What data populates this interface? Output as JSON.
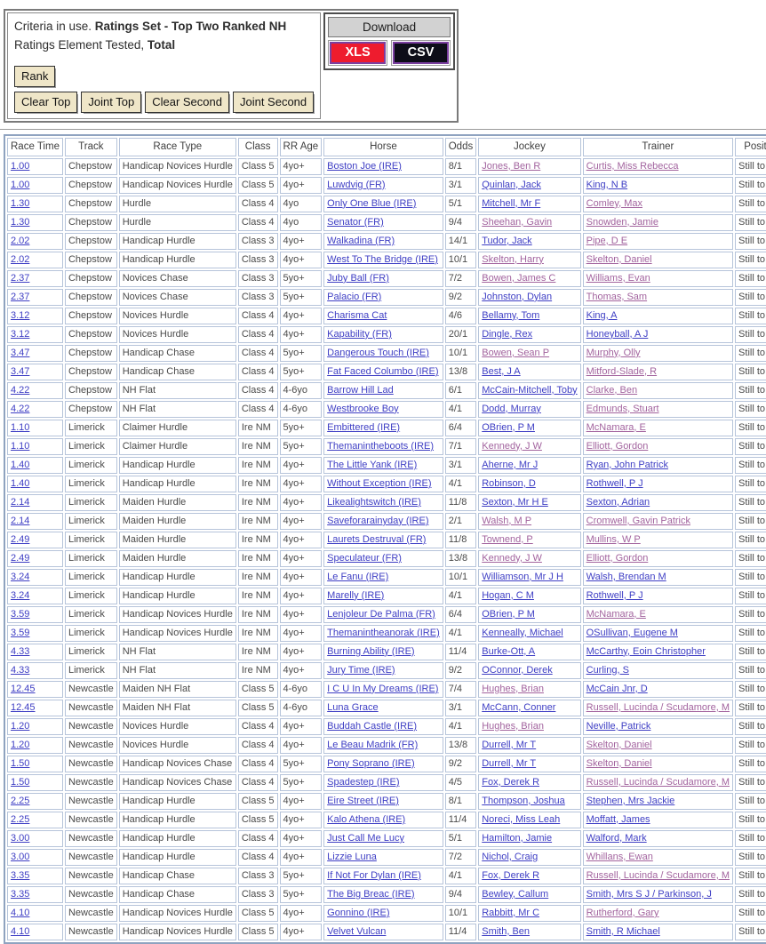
{
  "criteria": {
    "prefix": "Criteria in use. ",
    "ratings_set": "Ratings Set - Top Two Ranked NH",
    "element_prefix": "Ratings Element Tested, ",
    "element_value": "Total",
    "rank_button": "Rank",
    "buttons": [
      "Clear Top",
      "Joint Top",
      "Clear Second",
      "Joint Second"
    ]
  },
  "download": {
    "title": "Download",
    "xls_label": "XLS",
    "csv_label": "CSV",
    "xls_color": "#ee1c2e",
    "csv_color": "#0d0d18",
    "button_border_color": "#7b3fa0"
  },
  "colors": {
    "link_blue": "#3e3ec4",
    "link_visited": "#a2639e",
    "cell_border": "#b6c4da",
    "table_border": "#8fa3c0",
    "text": "#4a4a4a"
  },
  "table": {
    "columns": [
      "Race Time",
      "Track",
      "Race Type",
      "Class",
      "RR Age",
      "Horse",
      "Odds",
      "Jockey",
      "Trainer",
      "Position"
    ],
    "row_fields": [
      "race_time",
      "track",
      "race_type",
      "class",
      "rr_age",
      "horse",
      "odds",
      "jockey",
      "trainer",
      "position",
      "jockey_visited",
      "trainer_visited"
    ],
    "rows": [
      [
        "1.00",
        "Chepstow",
        "Handicap Novices Hurdle",
        "Class 5",
        "4yo+",
        "Boston Joe (IRE)",
        "8/1",
        "Jones, Ben R",
        "Curtis, Miss Rebecca",
        "Still to Run",
        1,
        1
      ],
      [
        "1.00",
        "Chepstow",
        "Handicap Novices Hurdle",
        "Class 5",
        "4yo+",
        "Luwdvig (FR)",
        "3/1",
        "Quinlan, Jack",
        "King, N B",
        "Still to Run",
        0,
        0
      ],
      [
        "1.30",
        "Chepstow",
        "Hurdle",
        "Class 4",
        "4yo",
        "Only One Blue (IRE)",
        "5/1",
        "Mitchell, Mr F",
        "Comley, Max",
        "Still to Run",
        0,
        1
      ],
      [
        "1.30",
        "Chepstow",
        "Hurdle",
        "Class 4",
        "4yo",
        "Senator (FR)",
        "9/4",
        "Sheehan, Gavin",
        "Snowden, Jamie",
        "Still to Run",
        1,
        1
      ],
      [
        "2.02",
        "Chepstow",
        "Handicap Hurdle",
        "Class 3",
        "4yo+",
        "Walkadina (FR)",
        "14/1",
        "Tudor, Jack",
        "Pipe, D E",
        "Still to Run",
        0,
        1
      ],
      [
        "2.02",
        "Chepstow",
        "Handicap Hurdle",
        "Class 3",
        "4yo+",
        "West To The Bridge (IRE)",
        "10/1",
        "Skelton, Harry",
        "Skelton, Daniel",
        "Still to Run",
        1,
        1
      ],
      [
        "2.37",
        "Chepstow",
        "Novices Chase",
        "Class 3",
        "5yo+",
        "Juby Ball (FR)",
        "7/2",
        "Bowen, James C",
        "Williams, Evan",
        "Still to Run",
        1,
        1
      ],
      [
        "2.37",
        "Chepstow",
        "Novices Chase",
        "Class 3",
        "5yo+",
        "Palacio (FR)",
        "9/2",
        "Johnston, Dylan",
        "Thomas, Sam",
        "Still to Run",
        0,
        1
      ],
      [
        "3.12",
        "Chepstow",
        "Novices Hurdle",
        "Class 4",
        "4yo+",
        "Charisma Cat",
        "4/6",
        "Bellamy, Tom",
        "King, A",
        "Still to Run",
        0,
        0
      ],
      [
        "3.12",
        "Chepstow",
        "Novices Hurdle",
        "Class 4",
        "4yo+",
        "Kapability (FR)",
        "20/1",
        "Dingle, Rex",
        "Honeyball, A J",
        "Still to Run",
        0,
        0
      ],
      [
        "3.47",
        "Chepstow",
        "Handicap Chase",
        "Class 4",
        "5yo+",
        "Dangerous Touch (IRE)",
        "10/1",
        "Bowen, Sean P",
        "Murphy, Olly",
        "Still to Run",
        1,
        1
      ],
      [
        "3.47",
        "Chepstow",
        "Handicap Chase",
        "Class 4",
        "5yo+",
        "Fat Faced Columbo (IRE)",
        "13/8",
        "Best, J A",
        "Mitford-Slade, R",
        "Still to Run",
        0,
        1
      ],
      [
        "4.22",
        "Chepstow",
        "NH Flat",
        "Class 4",
        "4-6yo",
        "Barrow Hill Lad",
        "6/1",
        "McCain-Mitchell, Toby",
        "Clarke, Ben",
        "Still to Run",
        0,
        1
      ],
      [
        "4.22",
        "Chepstow",
        "NH Flat",
        "Class 4",
        "4-6yo",
        "Westbrooke Boy",
        "4/1",
        "Dodd, Murray",
        "Edmunds, Stuart",
        "Still to Run",
        0,
        1
      ],
      [
        "1.10",
        "Limerick",
        "Claimer Hurdle",
        "Ire NM",
        "5yo+",
        "Embittered (IRE)",
        "6/4",
        "OBrien, P M",
        "McNamara, E",
        "Still to Run",
        0,
        1
      ],
      [
        "1.10",
        "Limerick",
        "Claimer Hurdle",
        "Ire NM",
        "5yo+",
        "Themanintheboots (IRE)",
        "7/1",
        "Kennedy, J W",
        "Elliott, Gordon",
        "Still to Run",
        1,
        1
      ],
      [
        "1.40",
        "Limerick",
        "Handicap Hurdle",
        "Ire NM",
        "4yo+",
        "The Little Yank (IRE)",
        "3/1",
        "Aherne, Mr J",
        "Ryan, John Patrick",
        "Still to Run",
        0,
        0
      ],
      [
        "1.40",
        "Limerick",
        "Handicap Hurdle",
        "Ire NM",
        "4yo+",
        "Without Exception (IRE)",
        "4/1",
        "Robinson, D",
        "Rothwell, P J",
        "Still to Run",
        0,
        0
      ],
      [
        "2.14",
        "Limerick",
        "Maiden Hurdle",
        "Ire NM",
        "4yo+",
        "Likealightswitch (IRE)",
        "11/8",
        "Sexton, Mr H E",
        "Sexton, Adrian",
        "Still to Run",
        0,
        0
      ],
      [
        "2.14",
        "Limerick",
        "Maiden Hurdle",
        "Ire NM",
        "4yo+",
        "Saveforarainyday (IRE)",
        "2/1",
        "Walsh, M P",
        "Cromwell, Gavin Patrick",
        "Still to Run",
        1,
        1
      ],
      [
        "2.49",
        "Limerick",
        "Maiden Hurdle",
        "Ire NM",
        "4yo+",
        "Laurets Destruval (FR)",
        "11/8",
        "Townend, P",
        "Mullins, W P",
        "Still to Run",
        1,
        1
      ],
      [
        "2.49",
        "Limerick",
        "Maiden Hurdle",
        "Ire NM",
        "4yo+",
        "Speculateur (FR)",
        "13/8",
        "Kennedy, J W",
        "Elliott, Gordon",
        "Still to Run",
        1,
        1
      ],
      [
        "3.24",
        "Limerick",
        "Handicap Hurdle",
        "Ire NM",
        "4yo+",
        "Le Fanu (IRE)",
        "10/1",
        "Williamson, Mr J H",
        "Walsh, Brendan M",
        "Still to Run",
        0,
        0
      ],
      [
        "3.24",
        "Limerick",
        "Handicap Hurdle",
        "Ire NM",
        "4yo+",
        "Marelly (IRE)",
        "4/1",
        "Hogan, C M",
        "Rothwell, P J",
        "Still to Run",
        0,
        0
      ],
      [
        "3.59",
        "Limerick",
        "Handicap Novices Hurdle",
        "Ire NM",
        "4yo+",
        "Lenjoleur De Palma (FR)",
        "6/4",
        "OBrien, P M",
        "McNamara, E",
        "Still to Run",
        0,
        1
      ],
      [
        "3.59",
        "Limerick",
        "Handicap Novices Hurdle",
        "Ire NM",
        "4yo+",
        "Themanintheanorak (IRE)",
        "4/1",
        "Kenneally, Michael",
        "OSullivan, Eugene M",
        "Still to Run",
        0,
        0
      ],
      [
        "4.33",
        "Limerick",
        "NH Flat",
        "Ire NM",
        "4yo+",
        "Burning Ability (IRE)",
        "11/4",
        "Burke-Ott, A",
        "McCarthy, Eoin Christopher",
        "Still to Run",
        0,
        0
      ],
      [
        "4.33",
        "Limerick",
        "NH Flat",
        "Ire NM",
        "4yo+",
        "Jury Time (IRE)",
        "9/2",
        "OConnor, Derek",
        "Curling, S",
        "Still to Run",
        0,
        0
      ],
      [
        "12.45",
        "Newcastle",
        "Maiden NH Flat",
        "Class 5",
        "4-6yo",
        "I C U In My Dreams (IRE)",
        "7/4",
        "Hughes, Brian",
        "McCain Jnr, D",
        "Still to Run",
        1,
        0
      ],
      [
        "12.45",
        "Newcastle",
        "Maiden NH Flat",
        "Class 5",
        "4-6yo",
        "Luna Grace",
        "3/1",
        "McCann, Conner",
        "Russell, Lucinda / Scudamore, M",
        "Still to Run",
        0,
        1
      ],
      [
        "1.20",
        "Newcastle",
        "Novices Hurdle",
        "Class 4",
        "4yo+",
        "Buddah Castle (IRE)",
        "4/1",
        "Hughes, Brian",
        "Neville, Patrick",
        "Still to Run",
        1,
        0
      ],
      [
        "1.20",
        "Newcastle",
        "Novices Hurdle",
        "Class 4",
        "4yo+",
        "Le Beau Madrik (FR)",
        "13/8",
        "Durrell, Mr T",
        "Skelton, Daniel",
        "Still to Run",
        0,
        1
      ],
      [
        "1.50",
        "Newcastle",
        "Handicap Novices Chase",
        "Class 4",
        "5yo+",
        "Pony Soprano (IRE)",
        "9/2",
        "Durrell, Mr T",
        "Skelton, Daniel",
        "Still to Run",
        0,
        1
      ],
      [
        "1.50",
        "Newcastle",
        "Handicap Novices Chase",
        "Class 4",
        "5yo+",
        "Spadestep (IRE)",
        "4/5",
        "Fox, Derek R",
        "Russell, Lucinda / Scudamore, M",
        "Still to Run",
        0,
        1
      ],
      [
        "2.25",
        "Newcastle",
        "Handicap Hurdle",
        "Class 5",
        "4yo+",
        "Eire Street (IRE)",
        "8/1",
        "Thompson, Joshua",
        "Stephen, Mrs Jackie",
        "Still to Run",
        0,
        0
      ],
      [
        "2.25",
        "Newcastle",
        "Handicap Hurdle",
        "Class 5",
        "4yo+",
        "Kalo Athena (IRE)",
        "11/4",
        "Noreci, Miss Leah",
        "Moffatt, James",
        "Still to Run",
        0,
        0
      ],
      [
        "3.00",
        "Newcastle",
        "Handicap Hurdle",
        "Class 4",
        "4yo+",
        "Just Call Me Lucy",
        "5/1",
        "Hamilton, Jamie",
        "Walford, Mark",
        "Still to Run",
        0,
        0
      ],
      [
        "3.00",
        "Newcastle",
        "Handicap Hurdle",
        "Class 4",
        "4yo+",
        "Lizzie Luna",
        "7/2",
        "Nichol, Craig",
        "Whillans, Ewan",
        "Still to Run",
        0,
        1
      ],
      [
        "3.35",
        "Newcastle",
        "Handicap Chase",
        "Class 3",
        "5yo+",
        "If Not For Dylan (IRE)",
        "4/1",
        "Fox, Derek R",
        "Russell, Lucinda / Scudamore, M",
        "Still to Run",
        0,
        1
      ],
      [
        "3.35",
        "Newcastle",
        "Handicap Chase",
        "Class 3",
        "5yo+",
        "The Big Breac (IRE)",
        "9/4",
        "Bewley, Callum",
        "Smith, Mrs S J / Parkinson, J",
        "Still to Run",
        0,
        0
      ],
      [
        "4.10",
        "Newcastle",
        "Handicap Novices Hurdle",
        "Class 5",
        "4yo+",
        "Gonnino (IRE)",
        "10/1",
        "Rabbitt, Mr C",
        "Rutherford, Gary",
        "Still to Run",
        0,
        1
      ],
      [
        "4.10",
        "Newcastle",
        "Handicap Novices Hurdle",
        "Class 5",
        "4yo+",
        "Velvet Vulcan",
        "11/4",
        "Smith, Ben",
        "Smith, R Michael",
        "Still to Run",
        0,
        0
      ]
    ]
  }
}
